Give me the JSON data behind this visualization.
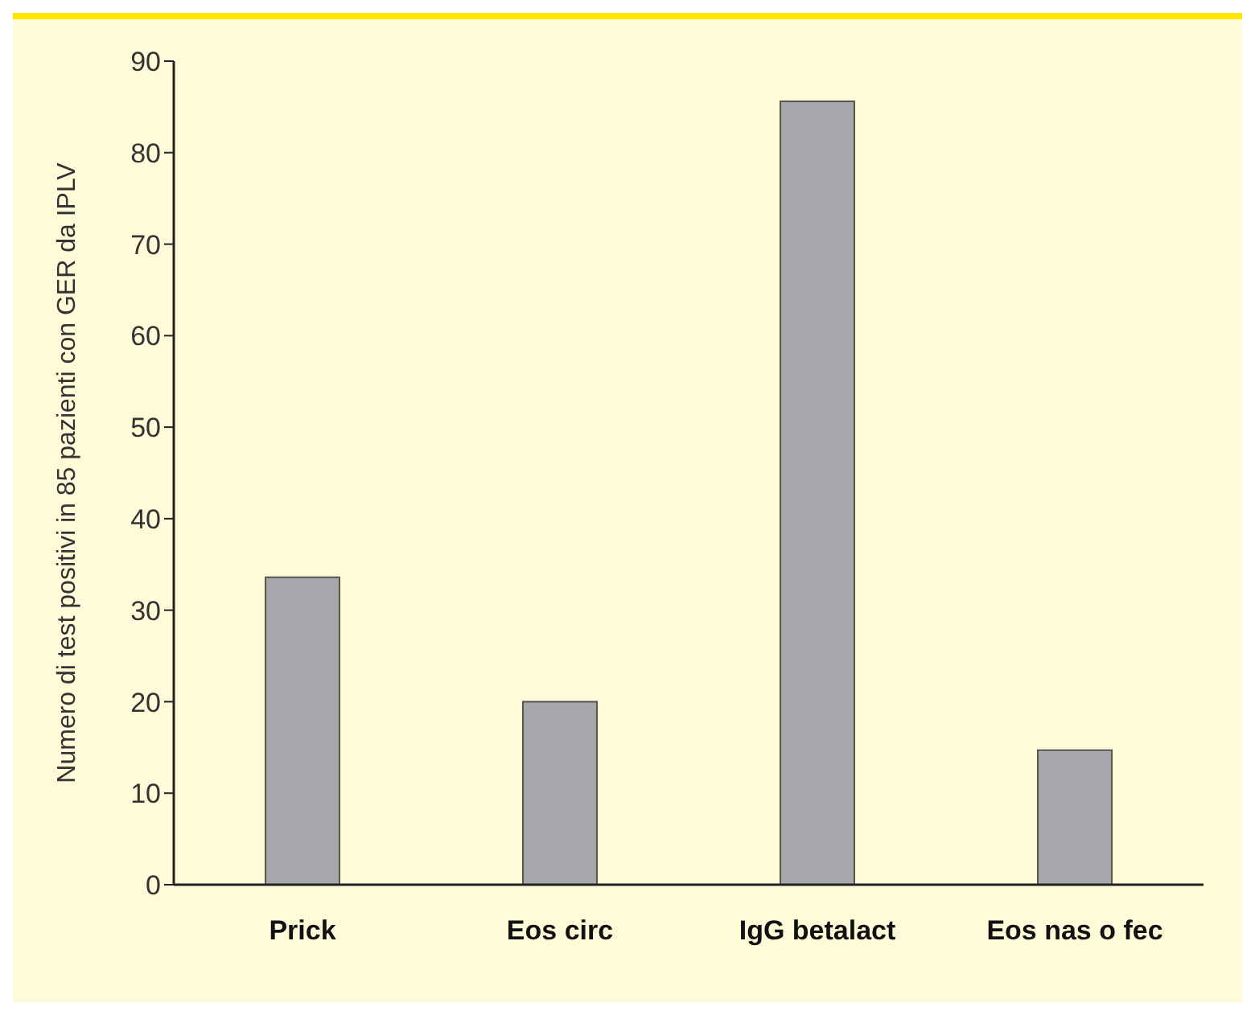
{
  "chart_data": {
    "type": "bar",
    "ylabel": "Numero di test positivi in 85 pazienti con GER da IPLV",
    "categories": [
      "Prick",
      "Eos circ",
      "IgG betalact",
      "Eos nas o fec"
    ],
    "values": [
      33.6,
      20,
      85.6,
      14.7
    ],
    "color": "#a7a8ab",
    "ylim": [
      0,
      90
    ],
    "yticks": [
      0,
      10,
      20,
      30,
      40,
      50,
      60,
      70,
      80,
      90
    ],
    "grid": false,
    "legend": false
  }
}
